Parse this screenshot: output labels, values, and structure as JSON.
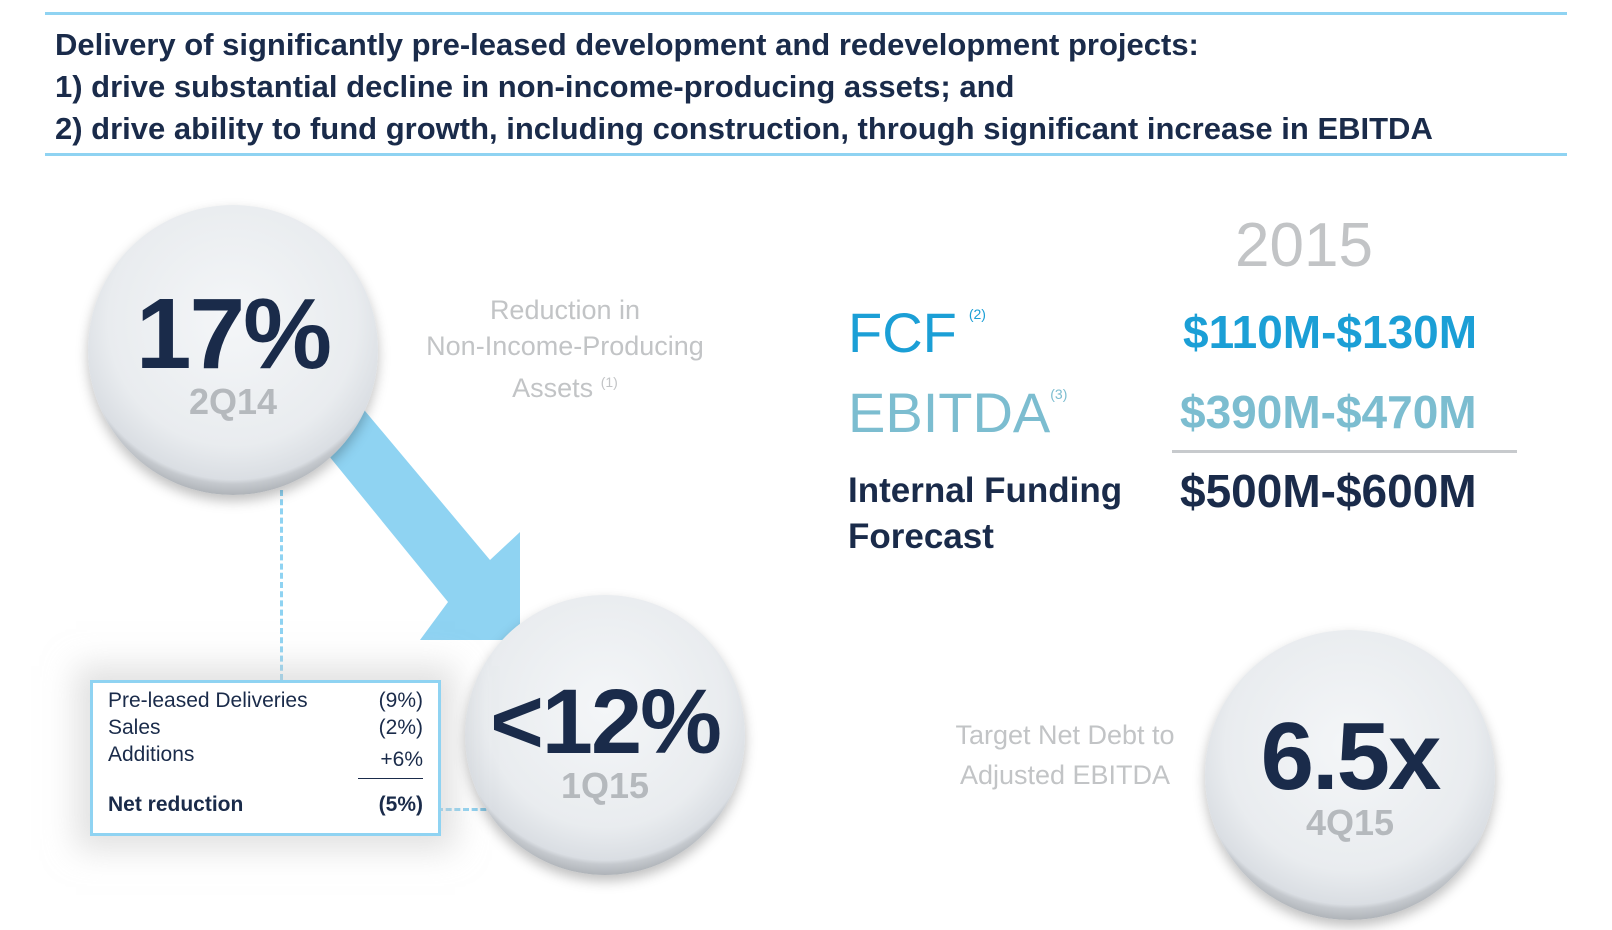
{
  "header": {
    "line1": "Delivery of significantly pre-leased development and redevelopment projects:",
    "line2": "1) drive substantial decline in non-income-producing assets; and",
    "line3": "2) drive ability to fund growth, including construction, through significant increase in EBITDA"
  },
  "circle1": {
    "value": "17%",
    "period": "2Q14"
  },
  "reduction": {
    "line1": "Reduction in",
    "line2": "Non-Income-Producing",
    "line3": "Assets",
    "footnote": "(1)"
  },
  "circle2": {
    "value": "<12%",
    "period": "1Q15"
  },
  "breakdown": {
    "rows": [
      {
        "label": "Pre-leased Deliveries",
        "value": "(9%)"
      },
      {
        "label": "Sales",
        "value": "(2%)"
      },
      {
        "label": "Additions",
        "value": "+6%"
      }
    ],
    "total": {
      "label": "Net reduction",
      "value": "(5%)"
    }
  },
  "forecast": {
    "year": "2015",
    "fcf": {
      "label": "FCF",
      "footnote": "(2)",
      "value": "$110M-$130M"
    },
    "ebitda": {
      "label": "EBITDA",
      "footnote": "(3)",
      "value": "$390M-$470M"
    },
    "internal": {
      "line1": "Internal Funding",
      "line2": "Forecast",
      "value": "$500M-$600M"
    }
  },
  "target": {
    "line1": "Target Net Debt to",
    "line2": "Adjusted EBITDA"
  },
  "circle3": {
    "value": "6.5x",
    "period": "4Q15"
  },
  "colors": {
    "navy": "#1a2b4a",
    "blue": "#1b9fd6",
    "teal": "#7cbdd0",
    "arrow": "#8fd3f2",
    "gray": "#c2c4c6"
  }
}
